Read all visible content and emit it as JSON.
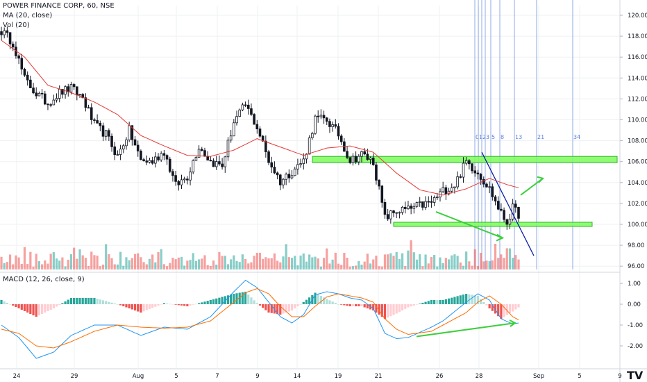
{
  "header": {
    "title": "POWER FINANCE CORP, 60, NSE",
    "ma_label": "MA (20, close)",
    "vol_label": "Vol (20)"
  },
  "macd_panel": {
    "label": "MACD (12, 26, close, 9)"
  },
  "watermark": "TV",
  "colors": {
    "up": "#26a69a",
    "down": "#ef5350",
    "ma": "#e53935",
    "macd_line": "#2196f3",
    "signal_line": "#ff6d00",
    "highlight": "#7cfc5a",
    "trendline": "#0d1fa8",
    "fib_line": "#8fa8e6"
  },
  "chart_data": [
    {
      "type": "candlestick",
      "title": "POWER FINANCE CORP, 60, NSE",
      "price_axis": {
        "ticks": [
          "120.00",
          "118.00",
          "116.00",
          "114.00",
          "112.00",
          "110.00",
          "108.00",
          "106.00",
          "104.00",
          "102.00",
          "100.00",
          "98.00",
          "96.00"
        ],
        "range": [
          96,
          121
        ]
      },
      "date_axis": {
        "ticks": [
          "24",
          "29",
          "Aug",
          "5",
          "7",
          "9",
          "14",
          "19",
          "21",
          "26",
          "28",
          "Sep",
          "5",
          "9"
        ]
      },
      "close_anchors": [
        [
          0,
          118.5
        ],
        [
          4,
          117.4
        ],
        [
          8,
          113.9
        ],
        [
          12,
          112.5
        ],
        [
          16,
          111.6
        ],
        [
          20,
          112.6
        ],
        [
          24,
          113.0
        ],
        [
          28,
          112.1
        ],
        [
          32,
          109.5
        ],
        [
          36,
          108.6
        ],
        [
          40,
          106.5
        ],
        [
          44,
          109.0
        ],
        [
          48,
          106.1
        ],
        [
          52,
          106.0
        ],
        [
          56,
          107.0
        ],
        [
          60,
          103.7
        ],
        [
          64,
          104.6
        ],
        [
          68,
          107.5
        ],
        [
          72,
          106.0
        ],
        [
          76,
          105.6
        ],
        [
          80,
          109.8
        ],
        [
          84,
          111.4
        ],
        [
          88,
          109.3
        ],
        [
          92,
          106.1
        ],
        [
          96,
          104.1
        ],
        [
          100,
          105.1
        ],
        [
          104,
          106.1
        ],
        [
          108,
          110.1
        ],
        [
          112,
          110.0
        ],
        [
          116,
          108.6
        ],
        [
          120,
          106.1
        ],
        [
          124,
          106.7
        ],
        [
          128,
          106.0
        ],
        [
          132,
          100.6
        ],
        [
          136,
          101.3
        ],
        [
          140,
          101.4
        ],
        [
          144,
          101.8
        ],
        [
          148,
          102.1
        ],
        [
          152,
          103.2
        ],
        [
          156,
          103.8
        ],
        [
          160,
          106.0
        ],
        [
          164,
          105.0
        ],
        [
          168,
          103.4
        ],
        [
          172,
          101.0
        ],
        [
          174,
          100.2
        ],
        [
          176,
          101.5
        ],
        [
          178,
          101.0
        ]
      ],
      "moving_average": {
        "name": "MA (20, close)",
        "anchors": [
          [
            0,
            117.6
          ],
          [
            8,
            116.0
          ],
          [
            16,
            113.3
          ],
          [
            24,
            112.6
          ],
          [
            32,
            111.7
          ],
          [
            40,
            110.5
          ],
          [
            48,
            108.5
          ],
          [
            56,
            107.5
          ],
          [
            64,
            106.6
          ],
          [
            72,
            106.5
          ],
          [
            80,
            107.1
          ],
          [
            88,
            108.2
          ],
          [
            96,
            107.4
          ],
          [
            104,
            106.6
          ],
          [
            112,
            107.3
          ],
          [
            120,
            107.5
          ],
          [
            128,
            106.9
          ],
          [
            136,
            104.9
          ],
          [
            144,
            103.3
          ],
          [
            152,
            102.8
          ],
          [
            160,
            103.4
          ],
          [
            168,
            104.4
          ],
          [
            174,
            103.8
          ],
          [
            178,
            103.5
          ]
        ]
      },
      "volume_max_bars": 2
    },
    {
      "type": "macd",
      "title": "MACD (12, 26, close, 9)",
      "y_axis": {
        "ticks": [
          "1.00",
          "0.00",
          "-1.00",
          "-2.00"
        ],
        "range": [
          -2.9,
          1.5
        ]
      },
      "macd_anchors": [
        [
          0,
          -1.0
        ],
        [
          6,
          -1.6
        ],
        [
          12,
          -2.6
        ],
        [
          18,
          -2.3
        ],
        [
          24,
          -1.5
        ],
        [
          32,
          -1.0
        ],
        [
          40,
          -1.0
        ],
        [
          48,
          -1.5
        ],
        [
          56,
          -1.1
        ],
        [
          64,
          -1.2
        ],
        [
          72,
          -0.6
        ],
        [
          80,
          0.6
        ],
        [
          84,
          1.15
        ],
        [
          88,
          0.8
        ],
        [
          92,
          0.1
        ],
        [
          96,
          -0.6
        ],
        [
          100,
          -0.9
        ],
        [
          104,
          -0.5
        ],
        [
          108,
          0.45
        ],
        [
          112,
          0.6
        ],
        [
          116,
          0.5
        ],
        [
          120,
          0.3
        ],
        [
          124,
          0.2
        ],
        [
          128,
          -0.2
        ],
        [
          132,
          -1.4
        ],
        [
          136,
          -1.65
        ],
        [
          140,
          -1.6
        ],
        [
          148,
          -1.1
        ],
        [
          152,
          -0.8
        ],
        [
          160,
          0.1
        ],
        [
          164,
          0.5
        ],
        [
          168,
          0.2
        ],
        [
          172,
          -0.7
        ],
        [
          176,
          -0.95
        ],
        [
          178,
          -0.9
        ]
      ],
      "signal_anchors": [
        [
          0,
          -1.2
        ],
        [
          6,
          -1.4
        ],
        [
          12,
          -2.0
        ],
        [
          18,
          -2.1
        ],
        [
          24,
          -1.8
        ],
        [
          32,
          -1.3
        ],
        [
          40,
          -1.0
        ],
        [
          48,
          -1.1
        ],
        [
          56,
          -1.15
        ],
        [
          64,
          -1.1
        ],
        [
          72,
          -0.8
        ],
        [
          80,
          0.1
        ],
        [
          84,
          0.55
        ],
        [
          88,
          0.75
        ],
        [
          92,
          0.5
        ],
        [
          96,
          -0.1
        ],
        [
          100,
          -0.6
        ],
        [
          104,
          -0.6
        ],
        [
          108,
          -0.1
        ],
        [
          112,
          0.35
        ],
        [
          116,
          0.5
        ],
        [
          120,
          0.4
        ],
        [
          124,
          0.3
        ],
        [
          128,
          0.1
        ],
        [
          132,
          -0.7
        ],
        [
          136,
          -1.2
        ],
        [
          140,
          -1.45
        ],
        [
          148,
          -1.3
        ],
        [
          152,
          -1.0
        ],
        [
          160,
          -0.4
        ],
        [
          164,
          0.1
        ],
        [
          168,
          0.4
        ],
        [
          172,
          0.0
        ],
        [
          176,
          -0.6
        ],
        [
          178,
          -0.75
        ]
      ]
    },
    {
      "type": "drawings",
      "fib_time_labels": [
        "0",
        "1",
        "2",
        "3",
        "5",
        "8",
        "13",
        "21",
        "34"
      ]
    }
  ]
}
